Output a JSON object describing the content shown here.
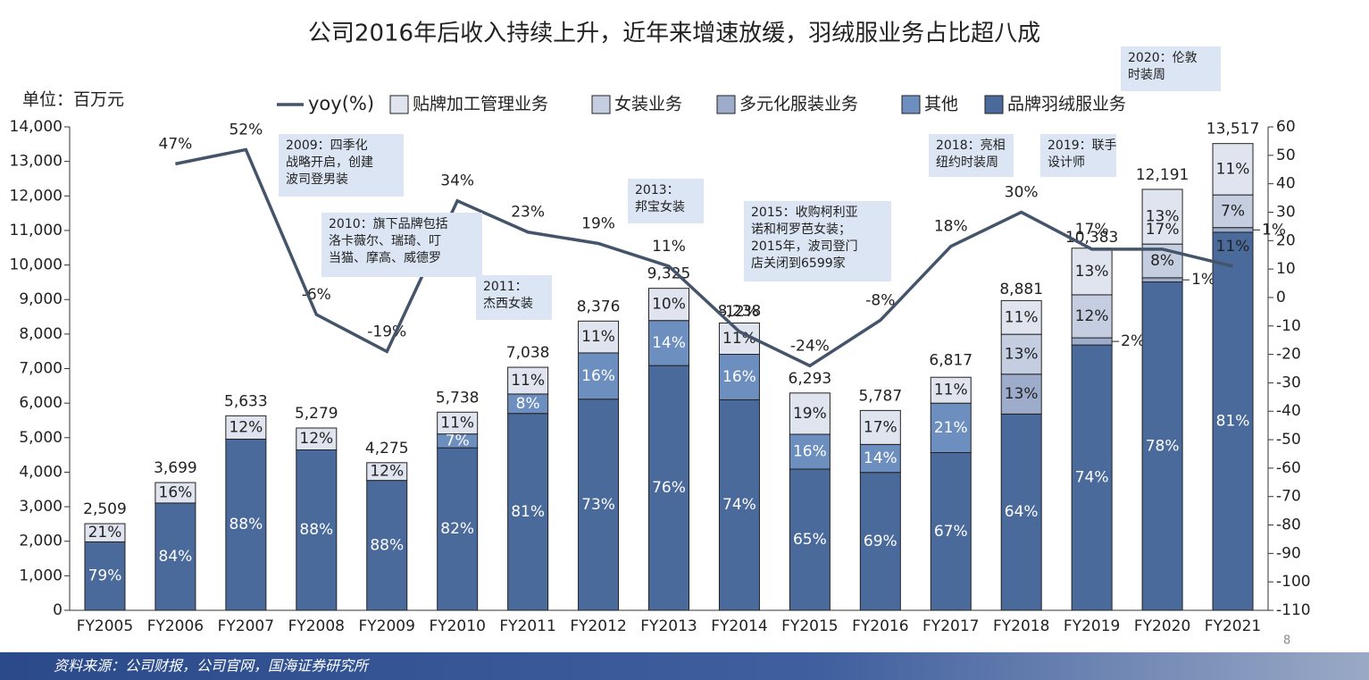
{
  "chart_data": {
    "type": "bar",
    "title": "公司2016年后收入持续上升，近年来增速放缓，羽绒服业务占比超八成",
    "unit_label": "单位：百万元",
    "source": "资料来源：公司财报，公司官网，国海证券研究所",
    "page_number": "8",
    "categories": [
      "FY2005",
      "FY2006",
      "FY2007",
      "FY2008",
      "FY2009",
      "FY2010",
      "FY2011",
      "FY2012",
      "FY2013",
      "FY2014",
      "FY2015",
      "FY2016",
      "FY2017",
      "FY2018",
      "FY2019",
      "FY2020",
      "FY2021"
    ],
    "totals": {
      "values": [
        2509,
        3699,
        5633,
        5279,
        4275,
        5738,
        7038,
        8376,
        9325,
        8238,
        6293,
        5787,
        6817,
        8881,
        10383,
        12191,
        13517
      ],
      "value_labels": [
        "2,509",
        "3,699",
        "5,633",
        "5,279",
        "4,275",
        "5,738",
        "7,038",
        "8,376",
        "9,325",
        "8,238",
        "6,293",
        "5,787",
        "6,817",
        "8,881",
        "10,383",
        "12,191",
        "13,517"
      ]
    },
    "series": [
      {
        "name": "品牌羽绒服业务",
        "color": "#4a6a9c",
        "values": [
          79,
          84,
          88,
          88,
          88,
          82,
          81,
          73,
          76,
          74,
          65,
          69,
          67,
          64,
          74,
          78,
          81
        ],
        "value_labels": [
          "79%",
          "84%",
          "88%",
          "88%",
          "88%",
          "82%",
          "81%",
          "73%",
          "76%",
          "74%",
          "65%",
          "69%",
          "67%",
          "64%",
          "74%",
          "78%",
          "81%"
        ]
      },
      {
        "name": "其他",
        "color": "#6d8fc0",
        "values": [
          null,
          null,
          null,
          null,
          null,
          7,
          8,
          16,
          14,
          16,
          16,
          14,
          21,
          null,
          null,
          null,
          null
        ],
        "value_labels": [
          null,
          null,
          null,
          null,
          null,
          "7%",
          "8%",
          "16%",
          "14%",
          "16%",
          "16%",
          "14%",
          "21%",
          null,
          null,
          null,
          null
        ]
      },
      {
        "name": "多元化服装业务",
        "color": "#9daccb",
        "values": [
          null,
          null,
          null,
          null,
          null,
          null,
          null,
          null,
          null,
          null,
          null,
          null,
          null,
          13,
          2,
          1,
          1
        ],
        "value_labels": [
          null,
          null,
          null,
          null,
          null,
          null,
          null,
          null,
          null,
          null,
          null,
          null,
          null,
          "13%",
          "2%",
          "1%",
          "1%"
        ]
      },
      {
        "name": "女装业务",
        "color": "#c5cee0",
        "values": [
          null,
          null,
          null,
          null,
          null,
          null,
          null,
          null,
          null,
          null,
          null,
          null,
          null,
          13,
          12,
          8,
          7
        ],
        "value_labels": [
          null,
          null,
          null,
          null,
          null,
          null,
          null,
          null,
          null,
          null,
          null,
          null,
          null,
          "13%",
          "12%",
          "8%",
          "7%"
        ]
      },
      {
        "name": "贴牌加工管理业务",
        "color": "#dfe4ee",
        "values": [
          21,
          16,
          12,
          12,
          12,
          11,
          11,
          11,
          10,
          11,
          19,
          17,
          11,
          11,
          13,
          13,
          11
        ],
        "value_labels": [
          "21%",
          "16%",
          "12%",
          "12%",
          "12%",
          "11%",
          "11%",
          "11%",
          "10%",
          "11%",
          "19%",
          "17%",
          "11%",
          "11%",
          "13%",
          "13%",
          "11%"
        ]
      },
      {
        "name": "yoy(%)",
        "type": "line",
        "axis": "y2",
        "color": "#44546a",
        "values": [
          null,
          47,
          52,
          -6,
          -19,
          34,
          23,
          19,
          11,
          -12,
          -24,
          -8,
          18,
          30,
          17,
          17,
          11
        ],
        "value_labels": [
          null,
          "47%",
          "52%",
          "-6%",
          "-19%",
          "34%",
          "23%",
          "19%",
          "11%",
          "-12%",
          "-24%",
          "-8%",
          "18%",
          "30%",
          "17%",
          "17%",
          "11%"
        ]
      }
    ],
    "ylim": [
      0,
      14000
    ],
    "yticks": [
      0,
      {
        "value": 1000,
        "label": "1,000"
      },
      {
        "value": 2000,
        "label": "2,000"
      },
      {
        "value": 3000,
        "label": "3,000"
      },
      {
        "value": 4000,
        "label": "4,000"
      },
      {
        "value": 5000,
        "label": "5,000"
      },
      {
        "value": 6000,
        "label": "6,000"
      },
      {
        "value": 7000,
        "label": "7,000"
      },
      {
        "value": 8000,
        "label": "8,000"
      },
      {
        "value": 9000,
        "label": "9,000"
      },
      {
        "value": 10000,
        "label": "10,000"
      },
      {
        "value": 11000,
        "label": "11,000"
      },
      {
        "value": 12000,
        "label": "12,000"
      },
      {
        "value": 13000,
        "label": "13,000"
      },
      {
        "value": 14000,
        "label": "14,000"
      }
    ],
    "y2lim": [
      -110,
      60
    ],
    "y2ticks": [
      -110,
      -100,
      -90,
      -80,
      -70,
      -60,
      -50,
      -40,
      -30,
      -20,
      -10,
      0,
      10,
      20,
      30,
      40,
      50,
      60
    ],
    "annotations": [
      {
        "lines": [
          "2009：四季化",
          "战略开启，创建",
          "波司登男装"
        ]
      },
      {
        "lines": [
          "2010：旗下品牌包括",
          "洛卡薇尔、瑞琦、叮",
          "当猫、摩高、威德罗"
        ]
      },
      {
        "lines": [
          "2011：",
          "杰西女装"
        ]
      },
      {
        "lines": [
          "2013：",
          "邦宝女装"
        ]
      },
      {
        "lines": [
          "2015：收购柯利亚",
          "诺和柯罗芭女装；",
          "2015年，波司登门",
          "店关闭到6599家"
        ]
      },
      {
        "lines": [
          "2018：亮相",
          "纽约时装周"
        ]
      },
      {
        "lines": [
          "2019：联手",
          "设计师"
        ]
      },
      {
        "lines": [
          "2020：伦敦",
          "时装周"
        ]
      }
    ]
  }
}
